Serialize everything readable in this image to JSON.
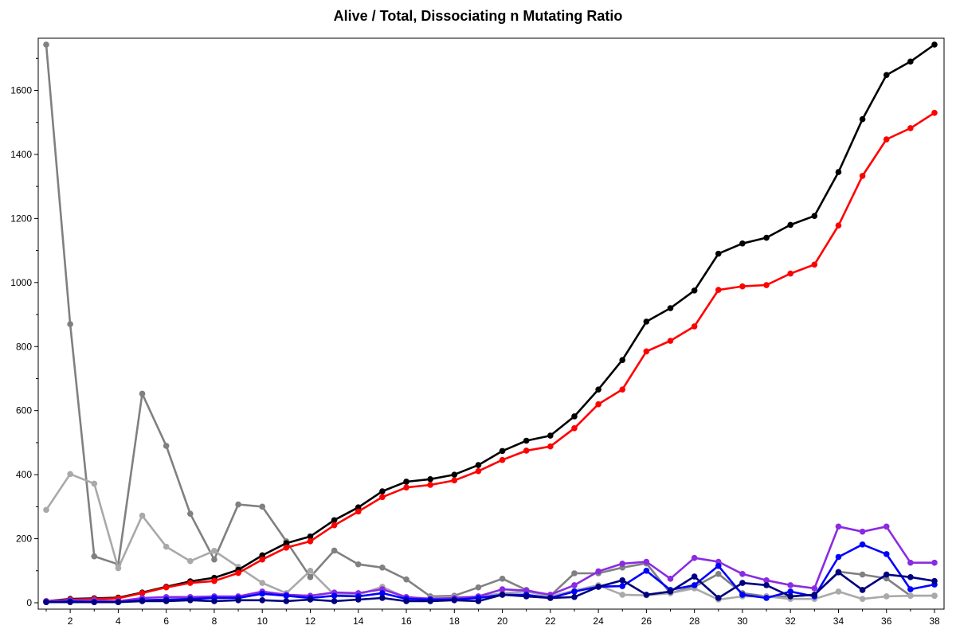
{
  "chart_data": {
    "type": "line",
    "title": "Alive / Total, Dissociating n Mutating Ratio",
    "xlabel": "",
    "ylabel": "",
    "xlim": [
      1,
      38
    ],
    "ylim": [
      0,
      1750
    ],
    "x_ticks": [
      2,
      4,
      6,
      8,
      10,
      12,
      14,
      16,
      18,
      20,
      22,
      24,
      26,
      28,
      30,
      32,
      34,
      36,
      38
    ],
    "y_ticks": [
      0,
      200,
      400,
      600,
      800,
      1000,
      1200,
      1400,
      1600
    ],
    "grid": false,
    "legend": "none",
    "x": [
      1,
      2,
      3,
      4,
      5,
      6,
      7,
      8,
      9,
      10,
      11,
      12,
      13,
      14,
      15,
      16,
      17,
      18,
      19,
      20,
      21,
      22,
      23,
      24,
      25,
      26,
      27,
      28,
      29,
      30,
      31,
      32,
      33,
      34,
      35,
      36,
      37,
      38
    ],
    "series": [
      {
        "color": "#808080",
        "values": [
          1743,
          870,
          145,
          120,
          653,
          490,
          278,
          135,
          307,
          300,
          192,
          80,
          163,
          120,
          110,
          73,
          20,
          22,
          48,
          75,
          40,
          22,
          92,
          92,
          110,
          123,
          30,
          50,
          90,
          30,
          20,
          20,
          25,
          97,
          88,
          76,
          22,
          22
        ]
      },
      {
        "color": "#a9a9a9",
        "values": [
          290,
          402,
          372,
          108,
          272,
          175,
          130,
          162,
          112,
          62,
          30,
          100,
          25,
          25,
          50,
          15,
          15,
          18,
          18,
          30,
          35,
          20,
          38,
          55,
          25,
          23,
          30,
          45,
          10,
          20,
          20,
          12,
          12,
          35,
          12,
          20,
          22,
          22
        ]
      },
      {
        "color": "#000000",
        "values": [
          5,
          12,
          14,
          16,
          32,
          50,
          67,
          78,
          103,
          148,
          186,
          207,
          258,
          298,
          348,
          378,
          386,
          400,
          430,
          474,
          506,
          522,
          582,
          666,
          758,
          878,
          920,
          975,
          1090,
          1122,
          1140,
          1180,
          1208,
          1345,
          1510,
          1648,
          1690,
          1743
        ]
      },
      {
        "color": "#ff0000",
        "values": [
          5,
          10,
          12,
          14,
          30,
          48,
          62,
          68,
          93,
          135,
          172,
          192,
          242,
          285,
          330,
          360,
          368,
          382,
          411,
          446,
          475,
          488,
          545,
          620,
          666,
          785,
          818,
          863,
          977,
          988,
          992,
          1028,
          1056,
          1178,
          1333,
          1447,
          1482,
          1530
        ]
      },
      {
        "color": "#8a2be2",
        "values": [
          5,
          8,
          8,
          5,
          15,
          18,
          18,
          20,
          20,
          35,
          25,
          22,
          32,
          30,
          42,
          18,
          12,
          15,
          20,
          42,
          38,
          25,
          55,
          98,
          122,
          128,
          75,
          140,
          128,
          90,
          70,
          55,
          45,
          238,
          222,
          238,
          125,
          125
        ]
      },
      {
        "color": "#0000ff",
        "values": [
          2,
          4,
          2,
          2,
          8,
          10,
          12,
          15,
          15,
          28,
          22,
          15,
          22,
          20,
          30,
          12,
          10,
          10,
          15,
          25,
          25,
          15,
          35,
          50,
          52,
          100,
          40,
          55,
          115,
          25,
          15,
          35,
          20,
          143,
          182,
          152,
          42,
          57
        ]
      },
      {
        "color": "#000080",
        "values": [
          2,
          2,
          2,
          2,
          5,
          5,
          8,
          5,
          8,
          8,
          5,
          10,
          5,
          10,
          15,
          5,
          5,
          8,
          5,
          25,
          20,
          15,
          18,
          50,
          70,
          25,
          35,
          82,
          15,
          62,
          55,
          20,
          25,
          95,
          40,
          88,
          80,
          68
        ]
      }
    ]
  }
}
